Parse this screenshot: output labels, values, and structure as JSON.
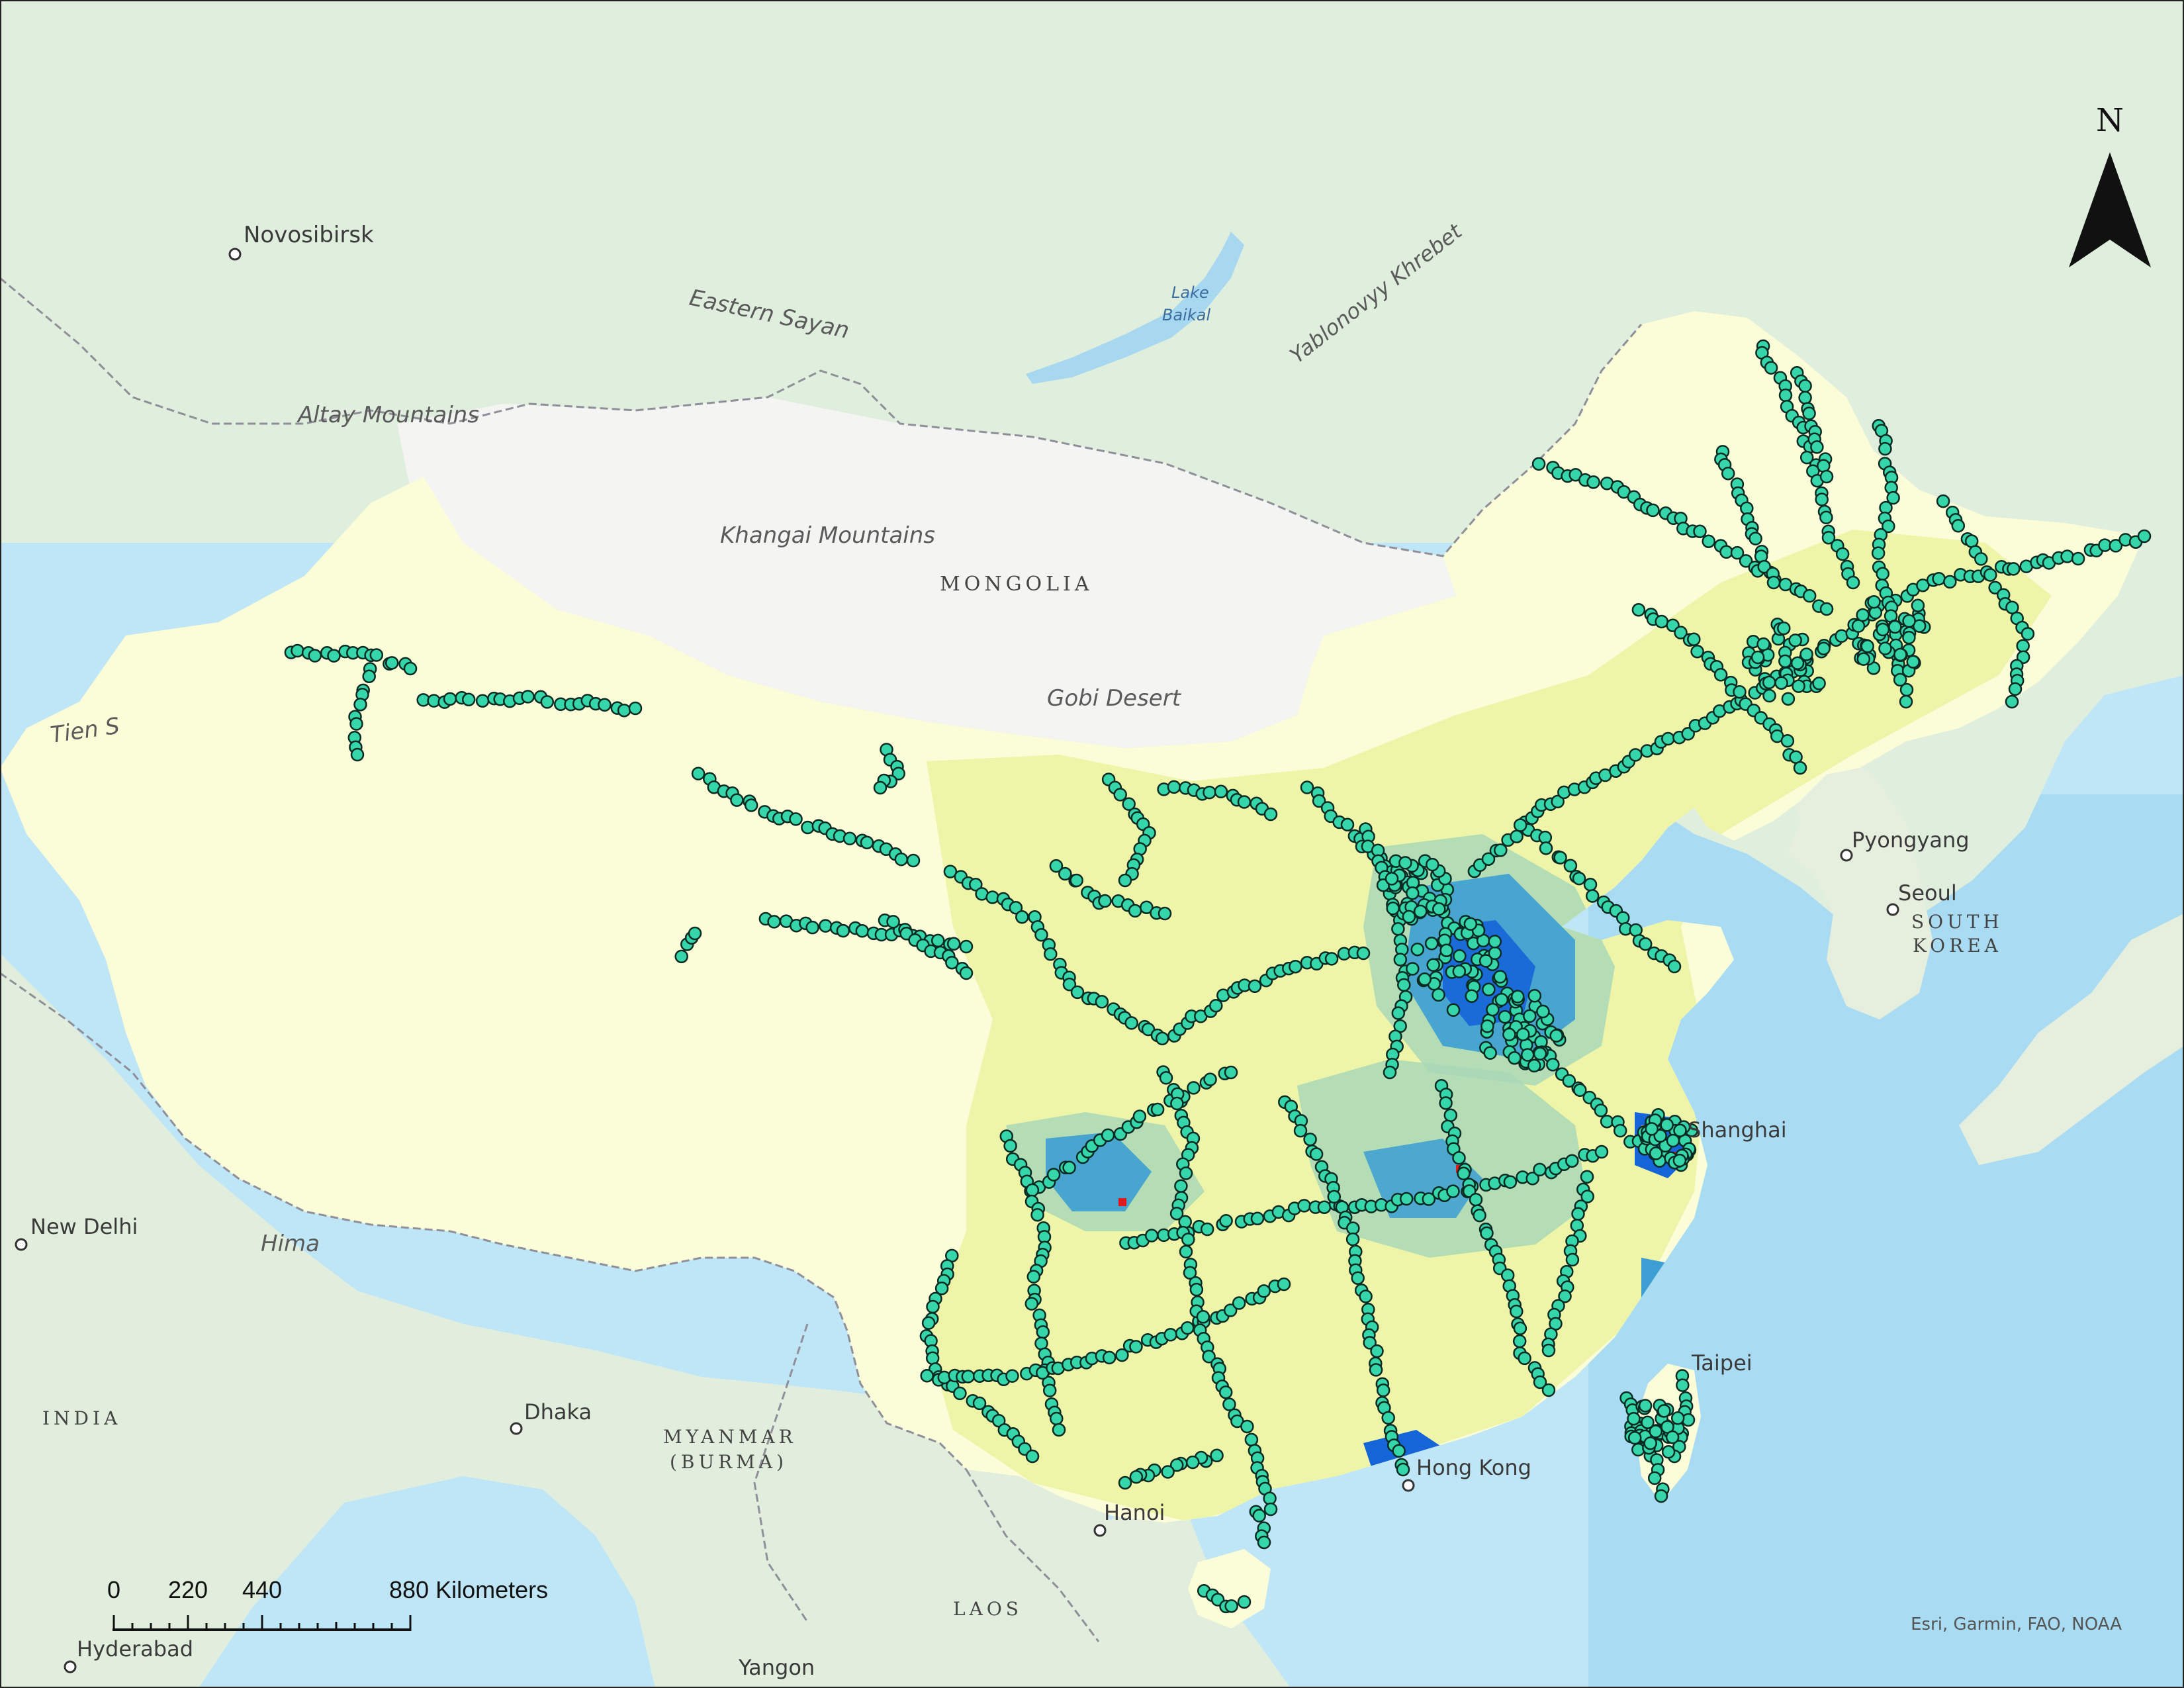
{
  "north_arrow": {
    "letter": "N"
  },
  "scale_bar": {
    "ticks": [
      "0",
      "220",
      "440"
    ],
    "end_label": "880 Kilometers"
  },
  "attribution": "Esri, Garmin, FAO, NOAA",
  "labels": {
    "countries": [
      {
        "id": "mongolia",
        "text": "MONGOLIA"
      },
      {
        "id": "south-korea-1",
        "text": "SOUTH"
      },
      {
        "id": "south-korea-2",
        "text": "KOREA"
      },
      {
        "id": "india",
        "text": "INDIA"
      },
      {
        "id": "myanmar-1",
        "text": "MYANMAR"
      },
      {
        "id": "myanmar-2",
        "text": "(BURMA)"
      },
      {
        "id": "laos",
        "text": "LAOS"
      }
    ],
    "physical": [
      {
        "id": "eastern-sayan",
        "text": "Eastern Sayan"
      },
      {
        "id": "yablonovyy",
        "text": "Yablonovyy Khrebet"
      },
      {
        "id": "altay",
        "text": "Altay Mountains"
      },
      {
        "id": "khangai",
        "text": "Khangai Mountains"
      },
      {
        "id": "gobi",
        "text": "Gobi Desert"
      },
      {
        "id": "tien-shan",
        "text": "Tien S"
      },
      {
        "id": "himalaya",
        "text": "Hima"
      }
    ],
    "water": [
      {
        "id": "lake-baikal-1",
        "text": "Lake"
      },
      {
        "id": "lake-baikal-2",
        "text": "Baikal"
      }
    ],
    "cities": [
      {
        "id": "novosibirsk",
        "text": "Novosibirsk"
      },
      {
        "id": "pyongyang",
        "text": "Pyongyang"
      },
      {
        "id": "seoul",
        "text": "Seoul"
      },
      {
        "id": "shanghai",
        "text": "Shanghai"
      },
      {
        "id": "taipei",
        "text": "Taipei"
      },
      {
        "id": "hong-kong",
        "text": "Hong Kong"
      },
      {
        "id": "hanoi",
        "text": "Hanoi"
      },
      {
        "id": "new-delhi",
        "text": "New Delhi"
      },
      {
        "id": "dhaka",
        "text": "Dhaka"
      },
      {
        "id": "yangon",
        "text": "Yangon"
      },
      {
        "id": "hyderabad",
        "text": "Hyderabad"
      }
    ]
  },
  "colors": {
    "ocean": "#bfe6f6",
    "land_north": "#dfeedd",
    "mongolia": "#f4f4f2",
    "china_base": "#fbfcd8",
    "density_low": "#eef5a8",
    "density_mid": "#a9d8b9",
    "density_high": "#3c9ed3",
    "density_top": "#1565d8",
    "hot_orange": "#f3a314",
    "hot_red": "#e3191c",
    "station_fill": "#35d6a9",
    "station_stroke": "#0a2a22",
    "border": "#8f8f99"
  }
}
